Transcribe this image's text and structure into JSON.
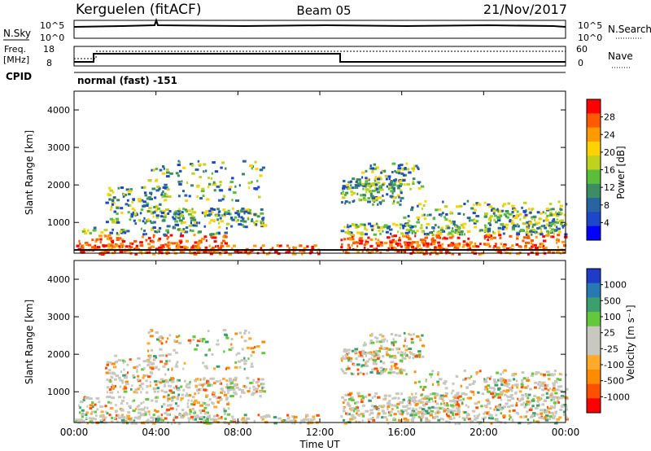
{
  "header": {
    "station": "Kerguelen (fitACF)",
    "beam": "Beam 05",
    "date": "21/Nov/2017"
  },
  "noise_panel": {
    "left_label": "N.Sky",
    "right_label": "N.Search",
    "left_ticks": [
      "10^5",
      "10^0"
    ],
    "right_ticks": [
      "10^5",
      "10^0"
    ]
  },
  "freq_panel": {
    "left_label_1": "Freq.",
    "left_label_2": "[MHz]",
    "left_ticks": [
      "18",
      "8"
    ],
    "right_label": "Nave",
    "right_ticks": [
      "60",
      "0"
    ],
    "cpid_label": "CPID",
    "cpid_text": "normal (fast) -151"
  },
  "chart_data": [
    {
      "type": "heatmap",
      "quantity": "power",
      "ylabel": "Slant Range [km]",
      "yticks": [
        "4000",
        "3000",
        "2000",
        "1000"
      ],
      "ylim": [
        180,
        4500
      ],
      "colorbar": {
        "label": "Power [dB]",
        "ticks": [
          "28",
          "24",
          "20",
          "16",
          "12",
          "8",
          "4"
        ],
        "colors": [
          "#ff0000",
          "#ff5a00",
          "#ff9b00",
          "#ffd200",
          "#bed21e",
          "#5abe3c",
          "#3c8c64",
          "#2864a0",
          "#1e46c8",
          "#0000ff"
        ]
      }
    },
    {
      "type": "heatmap",
      "quantity": "velocity",
      "ylabel": "Slant Range [km]",
      "yticks": [
        "4000",
        "3000",
        "2000",
        "1000"
      ],
      "ylim": [
        180,
        4500
      ],
      "colorbar": {
        "label": "Velocity [m s⁻¹]",
        "ticks": [
          "1000",
          "500",
          "100",
          "25",
          "-25",
          "-100",
          "-500",
          "-1000"
        ],
        "colors": [
          "#1e3cc8",
          "#2878b4",
          "#3ca06e",
          "#64c83c",
          "#c8c8c0",
          "#c8c8c0",
          "#ffaa28",
          "#ff8c00",
          "#ff5000",
          "#ff0000"
        ]
      }
    }
  ],
  "time_axis": {
    "label": "Time UT",
    "ticks": [
      "00:00",
      "04:00",
      "08:00",
      "12:00",
      "16:00",
      "20:00",
      "00:00"
    ],
    "hours": [
      0,
      4,
      8,
      12,
      16,
      20,
      24
    ]
  }
}
